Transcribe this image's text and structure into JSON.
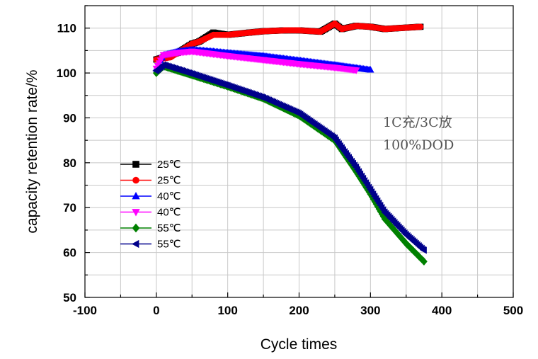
{
  "chart_data": {
    "type": "line",
    "title": "",
    "xlabel": "Cycle times",
    "ylabel": "capacity retention rate/%",
    "xlim": [
      -100,
      500
    ],
    "ylim": [
      50,
      115
    ],
    "xticks": [
      -100,
      0,
      100,
      200,
      300,
      400,
      500
    ],
    "yticks": [
      50,
      60,
      70,
      80,
      90,
      100,
      110
    ],
    "grid": true,
    "legend_position": "center-left",
    "annotations": [
      "1C充/3C放",
      "100%DOD"
    ],
    "series": [
      {
        "name": "25℃",
        "color": "#000000",
        "marker": "square",
        "x": [
          0,
          30,
          50,
          60,
          80,
          100,
          130,
          150,
          180,
          200,
          230,
          250,
          260,
          280,
          300,
          320,
          340,
          370
        ],
        "y": [
          103.0,
          104.5,
          106.5,
          107.0,
          109.0,
          108.5,
          109.0,
          109.3,
          109.5,
          109.5,
          109.2,
          111.0,
          109.8,
          110.5,
          110.3,
          109.8,
          110.0,
          110.3
        ]
      },
      {
        "name": "25℃",
        "color": "#ff0000",
        "marker": "circle",
        "x": [
          0,
          20,
          40,
          50,
          60,
          80,
          100,
          130,
          150,
          180,
          200,
          230,
          250,
          260,
          280,
          300,
          320,
          340,
          370
        ],
        "y": [
          103.0,
          103.5,
          105.5,
          106.5,
          107.0,
          108.5,
          108.5,
          109.0,
          109.3,
          109.5,
          109.5,
          109.2,
          111.0,
          109.8,
          110.5,
          110.3,
          109.8,
          110.0,
          110.3
        ]
      },
      {
        "name": "40℃",
        "color": "#0000ff",
        "marker": "triangle-up",
        "x": [
          0,
          10,
          30,
          50,
          80,
          100,
          150,
          200,
          250,
          300
        ],
        "y": [
          101.0,
          104.0,
          104.8,
          105.2,
          104.8,
          104.5,
          103.8,
          102.8,
          101.8,
          100.7
        ]
      },
      {
        "name": "40℃",
        "color": "#ff00ff",
        "marker": "triangle-down",
        "x": [
          0,
          10,
          30,
          50,
          80,
          100,
          150,
          200,
          250,
          280
        ],
        "y": [
          101.0,
          104.0,
          104.5,
          104.8,
          104.2,
          103.8,
          102.9,
          102.0,
          101.2,
          100.6
        ]
      },
      {
        "name": "55℃",
        "color": "#008000",
        "marker": "diamond",
        "x": [
          0,
          10,
          30,
          50,
          100,
          150,
          200,
          250,
          280,
          300,
          320,
          350,
          375
        ],
        "y": [
          100.0,
          101.5,
          100.5,
          99.5,
          97.0,
          94.3,
          90.5,
          85.0,
          78.0,
          73.0,
          67.5,
          62.0,
          58.0
        ]
      },
      {
        "name": "55℃",
        "color": "#00008b",
        "marker": "triangle-left",
        "x": [
          0,
          10,
          30,
          50,
          100,
          150,
          200,
          250,
          280,
          300,
          320,
          350,
          375
        ],
        "y": [
          100.5,
          101.8,
          100.8,
          99.8,
          97.2,
          94.5,
          91.0,
          85.5,
          79.0,
          74.0,
          69.0,
          64.0,
          60.5
        ]
      }
    ]
  }
}
